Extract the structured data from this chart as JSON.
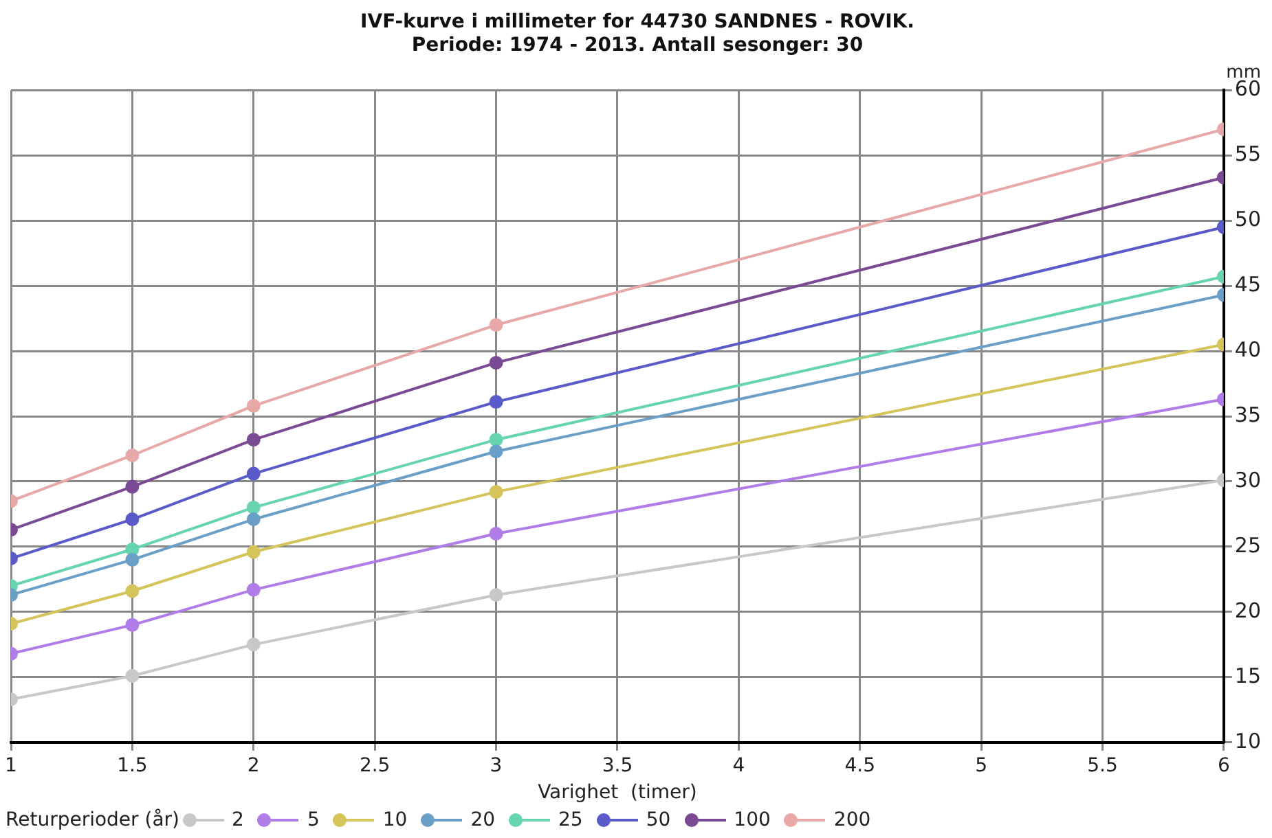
{
  "chart_data": {
    "type": "line",
    "title": "IVF-kurve i millimeter for 44730 SANDNES - ROVIK.",
    "subtitle": "Periode: 1974 - 2013. Antall sesonger: 30",
    "xlabel": "Varighet  (timer)",
    "ylabel": "mm",
    "legend_title": "Returperioder (år)",
    "x": [
      1,
      1.5,
      2,
      3,
      6
    ],
    "series": [
      {
        "name": "2",
        "color": "#c8c8c8",
        "values": [
          13.3,
          15.1,
          17.5,
          21.3,
          30.1
        ]
      },
      {
        "name": "5",
        "color": "#b07ce8",
        "values": [
          16.8,
          19.0,
          21.7,
          26.0,
          36.3
        ]
      },
      {
        "name": "10",
        "color": "#d4c45a",
        "values": [
          19.1,
          21.6,
          24.6,
          29.2,
          40.5
        ]
      },
      {
        "name": "20",
        "color": "#6aa0c8",
        "values": [
          21.3,
          24.0,
          27.1,
          32.3,
          44.3
        ]
      },
      {
        "name": "25",
        "color": "#66d4b0",
        "values": [
          22.0,
          24.8,
          28.0,
          33.2,
          45.7
        ]
      },
      {
        "name": "50",
        "color": "#5a5ac8",
        "values": [
          24.1,
          27.1,
          30.6,
          36.1,
          49.5
        ]
      },
      {
        "name": "100",
        "color": "#7a4a94",
        "values": [
          26.3,
          29.6,
          33.2,
          39.1,
          53.3
        ]
      },
      {
        "name": "200",
        "color": "#e8a8a8",
        "values": [
          28.5,
          32.0,
          35.8,
          42.0,
          57.0
        ]
      }
    ],
    "xlim": [
      1,
      6
    ],
    "xticks": [
      1,
      1.5,
      2,
      2.5,
      3,
      3.5,
      4,
      4.5,
      5,
      5.5,
      6
    ],
    "ylim": [
      10,
      60
    ],
    "yticks": [
      10,
      15,
      20,
      25,
      30,
      35,
      40,
      45,
      50,
      55,
      60
    ],
    "grid": true,
    "legend": "bottom",
    "marker": "circle",
    "line_style": "solid"
  }
}
